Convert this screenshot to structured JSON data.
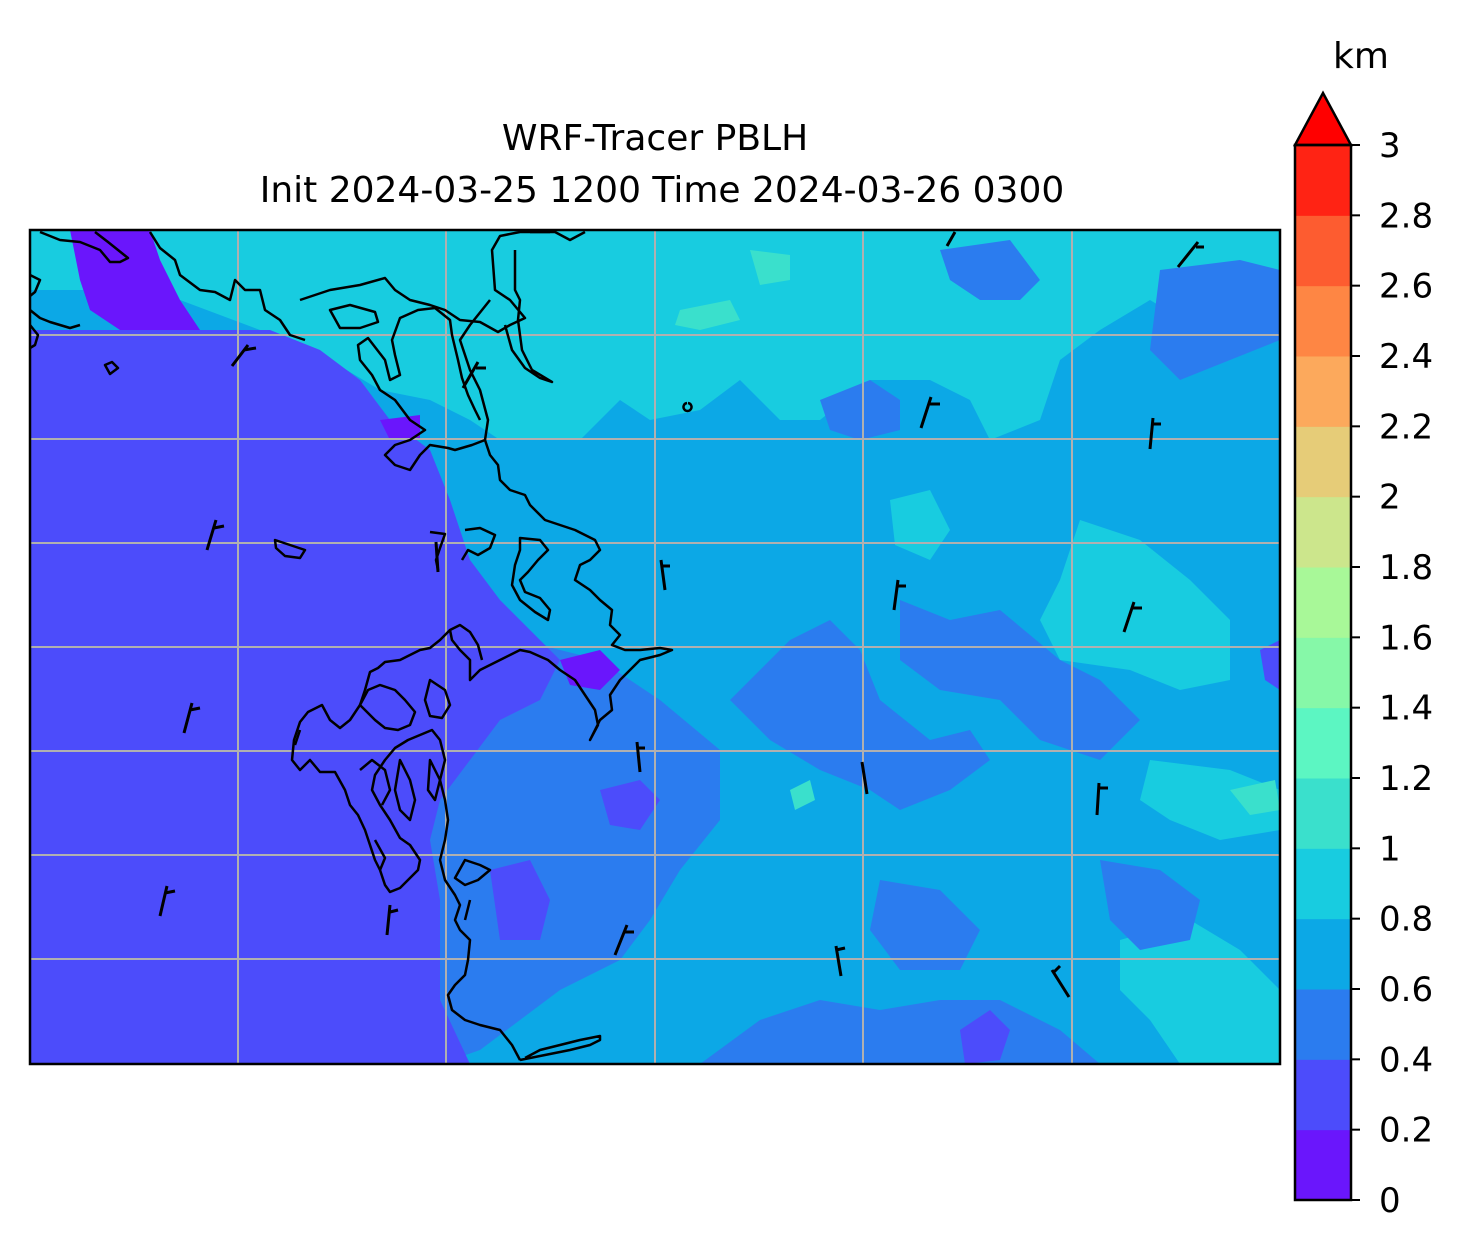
{
  "title": {
    "line1": "WRF-Tracer PBLH",
    "line2": "Init 2024-03-25 1200 Time 2024-03-26 0300"
  },
  "colorbar": {
    "unit": "km",
    "ticks": [
      "0",
      "0.2",
      "0.4",
      "0.6",
      "0.8",
      "1",
      "1.2",
      "1.4",
      "1.6",
      "1.8",
      "2",
      "2.2",
      "2.4",
      "2.6",
      "2.8",
      "3"
    ],
    "levels": [
      0,
      0.2,
      0.4,
      0.6,
      0.8,
      1.0,
      1.2,
      1.4,
      1.6,
      1.8,
      2.0,
      2.2,
      2.4,
      2.6,
      2.8,
      3.0
    ],
    "colors": [
      "#6a16fc",
      "#4c4cfb",
      "#2b7cef",
      "#0ca8e6",
      "#18cce0",
      "#3ae0cc",
      "#5cf6c2",
      "#86f8a8",
      "#a8f898",
      "#cce68c",
      "#e6cc78",
      "#fca95c",
      "#fe8644",
      "#fd5c30",
      "#ff2314",
      "#ff0000"
    ],
    "extend": "max"
  },
  "map": {
    "field": "PBLH",
    "gridlines": true,
    "coastlines": true,
    "wind_barbs": true,
    "colors": {
      "very_low": "#6a16fc",
      "low": "#4c4cfb",
      "mid_low": "#2b7cef",
      "mid": "#0ca8e6",
      "mid_high": "#18cce0",
      "high": "#3ae0cc",
      "gridline": "#b0b0b0",
      "coast": "#000000"
    }
  }
}
